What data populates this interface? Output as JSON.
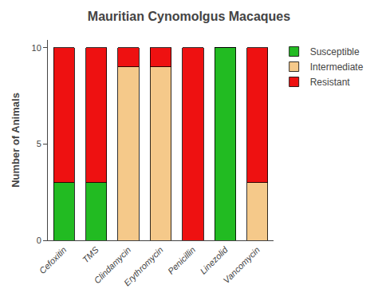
{
  "chart_data": {
    "type": "bar",
    "stacked": true,
    "title": "Mauritian Cynomolgus Macaques",
    "ylabel": "Number of Animals",
    "categories": [
      "Cefoxitin",
      "TMS",
      "Clindamycin",
      "Erythromycin",
      "Penicillin",
      "Linezolid",
      "Vancomycin"
    ],
    "series": [
      {
        "name": "Susceptible",
        "color": "#22bb22",
        "values": [
          3,
          3,
          0,
          0,
          0,
          10,
          0
        ]
      },
      {
        "name": "Intermediate",
        "color": "#f5c98a",
        "values": [
          0,
          0,
          9,
          9,
          0,
          0,
          3
        ]
      },
      {
        "name": "Resistant",
        "color": "#ee1111",
        "values": [
          7,
          7,
          1,
          1,
          10,
          0,
          7
        ]
      }
    ],
    "ylim": [
      0,
      10.4
    ],
    "yticks": [
      0,
      5,
      10
    ],
    "grid": false,
    "legend": "right"
  }
}
